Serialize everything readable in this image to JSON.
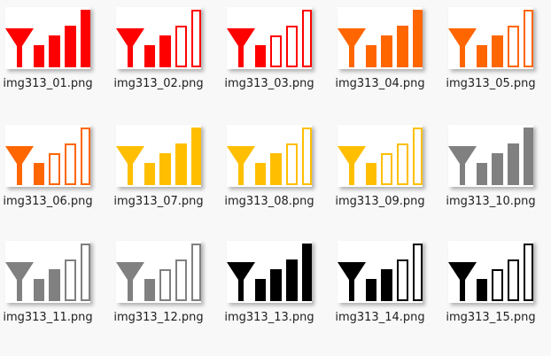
{
  "files": [
    {
      "name": "img313_01.png",
      "icon": "funnel-bar-chart-icon",
      "color": "#ff0000",
      "outlined_bars": 0
    },
    {
      "name": "img313_02.png",
      "icon": "funnel-bar-chart-icon",
      "color": "#ff0000",
      "outlined_bars": 2
    },
    {
      "name": "img313_03.png",
      "icon": "funnel-bar-chart-icon",
      "color": "#ff0000",
      "outlined_bars": 3
    },
    {
      "name": "img313_04.png",
      "icon": "funnel-bar-chart-icon",
      "color": "#ff6600",
      "outlined_bars": 0
    },
    {
      "name": "img313_05.png",
      "icon": "funnel-bar-chart-icon",
      "color": "#ff6600",
      "outlined_bars": 2
    },
    {
      "name": "img313_06.png",
      "icon": "funnel-bar-chart-icon",
      "color": "#ff6600",
      "outlined_bars": 3
    },
    {
      "name": "img313_07.png",
      "icon": "funnel-bar-chart-icon",
      "color": "#ffbf00",
      "outlined_bars": 0
    },
    {
      "name": "img313_08.png",
      "icon": "funnel-bar-chart-icon",
      "color": "#ffbf00",
      "outlined_bars": 2
    },
    {
      "name": "img313_09.png",
      "icon": "funnel-bar-chart-icon",
      "color": "#ffbf00",
      "outlined_bars": 3
    },
    {
      "name": "img313_10.png",
      "icon": "funnel-bar-chart-icon",
      "color": "#808080",
      "outlined_bars": 0
    },
    {
      "name": "img313_11.png",
      "icon": "funnel-bar-chart-icon",
      "color": "#808080",
      "outlined_bars": 2
    },
    {
      "name": "img313_12.png",
      "icon": "funnel-bar-chart-icon",
      "color": "#808080",
      "outlined_bars": 3
    },
    {
      "name": "img313_13.png",
      "icon": "funnel-bar-chart-icon",
      "color": "#000000",
      "outlined_bars": 0
    },
    {
      "name": "img313_14.png",
      "icon": "funnel-bar-chart-icon",
      "color": "#000000",
      "outlined_bars": 2
    },
    {
      "name": "img313_15.png",
      "icon": "funnel-bar-chart-icon",
      "color": "#000000",
      "outlined_bars": 3
    }
  ]
}
